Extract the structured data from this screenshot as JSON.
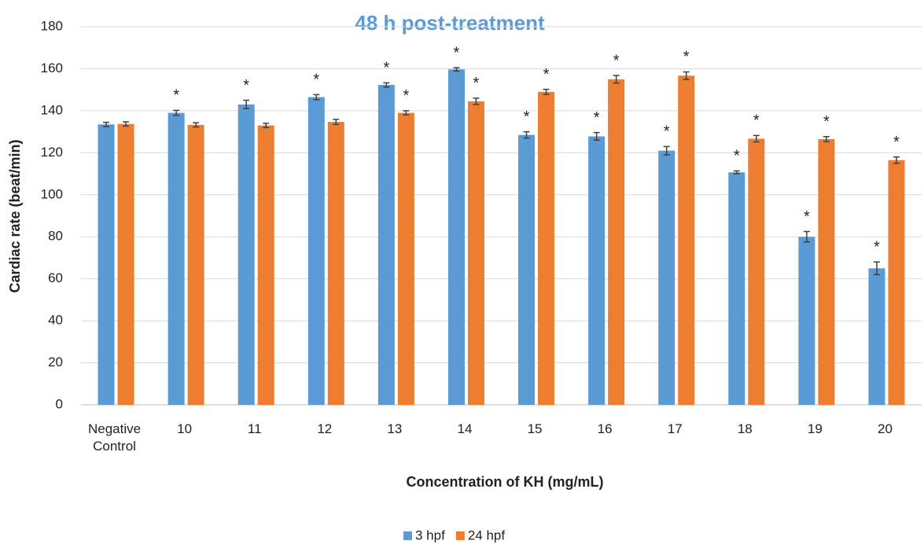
{
  "chart_data": {
    "type": "bar",
    "title": "48 h post-treatment",
    "x_label": "Concentration of KH (mg/mL)",
    "y_label": "Cardiac rate (beat/min)",
    "categories": [
      "Negative Control",
      "10",
      "11",
      "12",
      "13",
      "14",
      "15",
      "16",
      "17",
      "18",
      "19",
      "20"
    ],
    "series": [
      {
        "name": "3 hpf",
        "color": "#5b9bd5",
        "values": [
          133.5,
          139,
          143,
          146.5,
          152.3,
          159.7,
          128.5,
          127.8,
          121,
          110.7,
          80,
          65
        ],
        "errors": [
          1,
          1.2,
          2,
          1.2,
          1,
          0.8,
          1.5,
          1.8,
          2,
          0.7,
          2.5,
          3
        ],
        "labels": [
          null,
          "*",
          "*",
          "*",
          "*",
          "*",
          "*",
          "*",
          "*",
          "*",
          "*",
          "*"
        ]
      },
      {
        "name": "24 hpf",
        "color": "#ed7d31",
        "values": [
          133.7,
          133.3,
          133,
          134.7,
          139,
          144.5,
          149,
          155,
          156.7,
          126.7,
          126.5,
          116.5
        ],
        "errors": [
          1,
          1,
          1,
          1.2,
          1,
          1.5,
          1.2,
          1.8,
          1.8,
          1.5,
          1.2,
          1.5
        ],
        "labels": [
          null,
          null,
          null,
          null,
          "*",
          "*",
          "*",
          "*",
          "*",
          "*",
          "*",
          "*"
        ]
      }
    ],
    "ylim": [
      0,
      180
    ],
    "yticks": [
      0,
      20,
      40,
      60,
      80,
      100,
      120,
      140,
      160,
      180
    ],
    "grid": true,
    "legend": "bottom"
  }
}
